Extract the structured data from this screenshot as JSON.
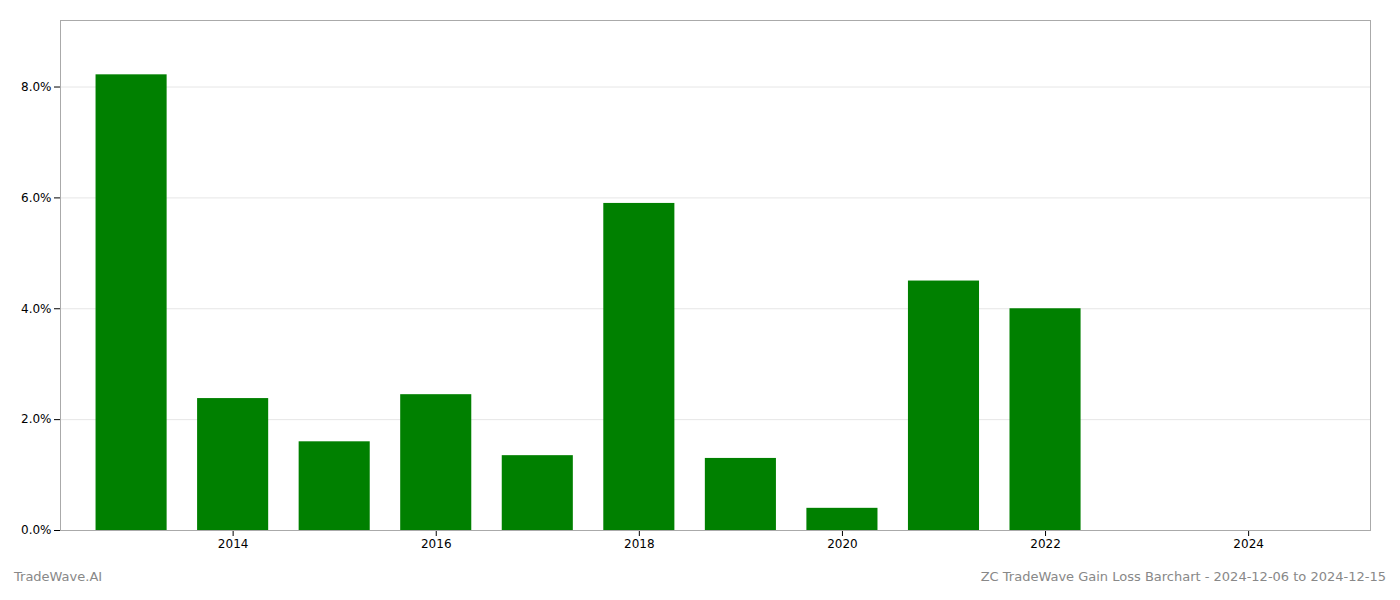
{
  "chart_data": {
    "type": "bar",
    "title": "ZC TradeWave Gain Loss Barchart - 2024-12-06 to 2024-12-15",
    "annotations": [
      "TradeWave.AI"
    ],
    "x": [
      2013,
      2014,
      2015,
      2016,
      2017,
      2018,
      2019,
      2020,
      2021,
      2022,
      2023,
      2024
    ],
    "values": [
      0.0822,
      0.0238,
      0.016,
      0.0245,
      0.0135,
      0.059,
      0.013,
      0.004,
      0.045,
      0.04,
      0.0,
      0.0
    ],
    "color": "#008000",
    "xlim": [
      2012.3,
      2025.2
    ],
    "xticks": [
      2014,
      2016,
      2018,
      2020,
      2022,
      2024
    ],
    "ylim": [
      0,
      0.092
    ],
    "yticks": [
      {
        "value": 0.0,
        "label": "0.0%"
      },
      {
        "value": 0.02,
        "label": "2.0%"
      },
      {
        "value": 0.04,
        "label": "4.0%"
      },
      {
        "value": 0.06,
        "label": "6.0%"
      },
      {
        "value": 0.08,
        "label": "8.0%"
      }
    ],
    "grid": true
  }
}
